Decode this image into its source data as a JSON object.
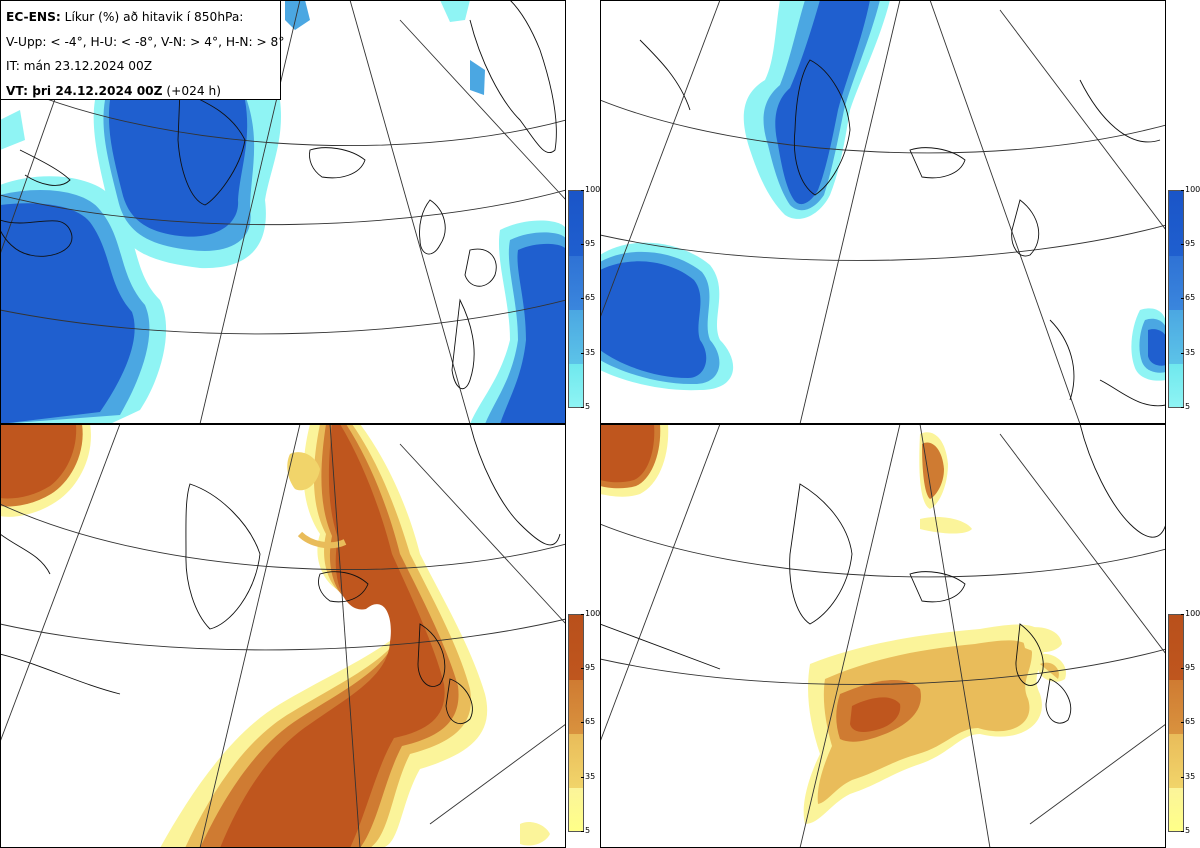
{
  "header": {
    "line1_bold": "EC-ENS:",
    "line1_rest": "Líkur (%) að hitavik í 850hPa:",
    "line2": "V-Upp: < -4°, H-U: < -8°, V-N: > 4°, H-N: > 8°",
    "line3": "IT: mán 23.12.2024 00Z",
    "line4_bold": "VT: þri 24.12.2024 00Z",
    "line4_rest": "(+024 h)"
  },
  "colorbar": {
    "ticks": [
      "100",
      "95",
      "65",
      "35",
      "5"
    ],
    "cold_color": "#1f5fcf",
    "warm_color": "#bf561e"
  },
  "panels": [
    {
      "id": "V-Upp",
      "region": "top-left",
      "palette": "blue"
    },
    {
      "id": "H-U",
      "region": "top-right",
      "palette": "blue"
    },
    {
      "id": "V-N",
      "region": "bottom-left",
      "palette": "orange"
    },
    {
      "id": "H-N",
      "region": "bottom-right",
      "palette": "orange"
    }
  ]
}
